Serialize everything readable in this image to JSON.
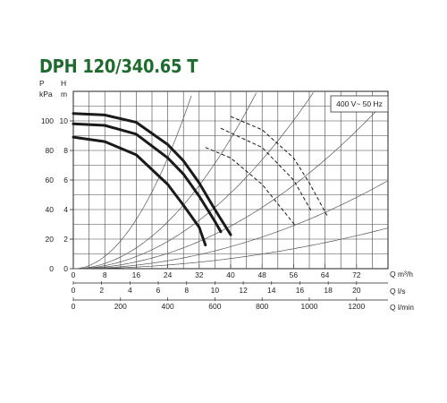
{
  "header": {
    "title": "DPH 120/340.65 T"
  },
  "colors": {
    "title": "#1f6b2f",
    "curve": "#1a1a1a",
    "grid": "#444444"
  },
  "chart_data": {
    "type": "line",
    "title": "DPH 120/340.65 T",
    "annotation": "400 V~ 50 Hz",
    "grid": true,
    "x_axes": [
      {
        "unit": "Q m³/h",
        "range": [
          0,
          80
        ],
        "ticks": [
          "0",
          "8",
          "16",
          "24",
          "32",
          "40",
          "48",
          "56",
          "64",
          "72"
        ]
      },
      {
        "unit": "Q l/s",
        "range": [
          0,
          22.22
        ],
        "ticks": [
          "0",
          "2",
          "4",
          "6",
          "8",
          "10",
          "12",
          "14",
          "16",
          "18",
          "20"
        ]
      },
      {
        "unit": "Q l/min",
        "range": [
          0,
          1333.3
        ],
        "ticks": [
          "0",
          "200",
          "400",
          "600",
          "800",
          "1000",
          "1200"
        ]
      }
    ],
    "y_axes": [
      {
        "label": "P\nkPa",
        "ticks": [
          "0",
          "20",
          "40",
          "60",
          "80",
          "100"
        ]
      },
      {
        "label": "H\nm",
        "range": [
          0,
          12
        ],
        "ticks": [
          "0",
          "2",
          "4",
          "6",
          "8",
          "10"
        ]
      }
    ],
    "series": [
      {
        "style": "solid",
        "x": [
          0,
          8,
          16,
          24,
          28,
          32,
          36,
          40
        ],
        "y": [
          10.5,
          10.4,
          9.9,
          8.4,
          7.3,
          5.8,
          4.0,
          2.3
        ]
      },
      {
        "style": "solid",
        "x": [
          0,
          8,
          16,
          24,
          28,
          32,
          36,
          37.5
        ],
        "y": [
          9.8,
          9.7,
          9.1,
          7.5,
          6.4,
          4.9,
          3.2,
          2.5
        ]
      },
      {
        "style": "solid",
        "x": [
          0,
          8,
          16,
          24,
          28,
          32,
          33.6
        ],
        "y": [
          8.9,
          8.6,
          7.7,
          5.7,
          4.3,
          2.8,
          1.6
        ]
      },
      {
        "style": "dashed",
        "x": [
          40,
          48,
          56,
          60,
          64.5
        ],
        "y": [
          10.3,
          9.4,
          7.5,
          5.8,
          3.6
        ]
      },
      {
        "style": "dashed",
        "x": [
          37.5,
          48,
          56,
          60.5
        ],
        "y": [
          9.5,
          8.2,
          6.0,
          3.9
        ]
      },
      {
        "style": "dashed",
        "x": [
          33.6,
          40,
          48,
          56.5
        ],
        "y": [
          8.2,
          7.5,
          5.7,
          2.9
        ]
      }
    ]
  }
}
